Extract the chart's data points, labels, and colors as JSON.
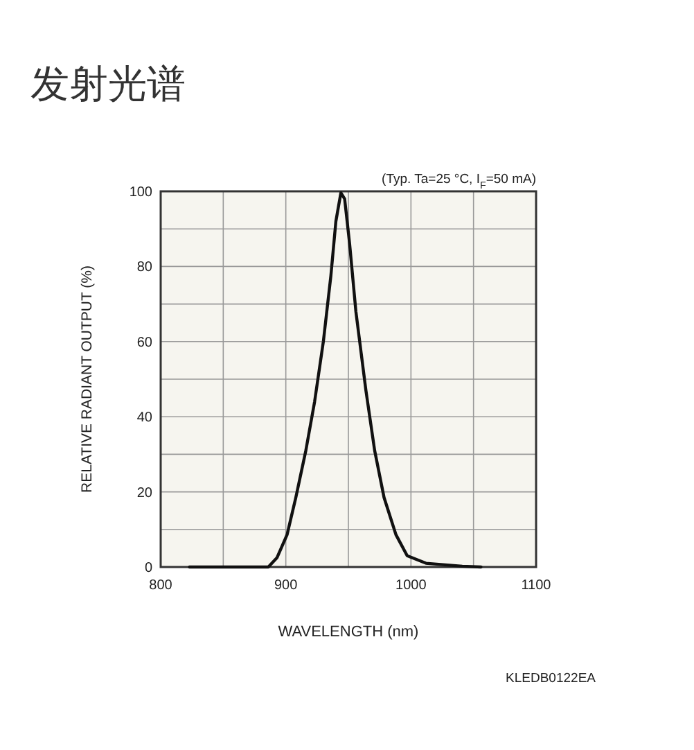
{
  "chart_data": {
    "type": "line",
    "title": "发射光谱",
    "xlabel": "WAVELENGTH (nm)",
    "ylabel": "RELATIVE RADIANT OUTPUT (%)",
    "annotations": [
      "(Typ. Ta=25 °C, I$_{F}$=50 mA)",
      "KLEDB0122EA"
    ],
    "xlim": [
      800,
      1100
    ],
    "ylim": [
      0,
      100
    ],
    "xticks": [
      800,
      {
        "value": 850,
        "label": null
      },
      900,
      {
        "value": 950,
        "label": null
      },
      1000,
      {
        "value": 1050,
        "label": null
      },
      1100
    ],
    "yticks": [
      0,
      {
        "value": 10,
        "label": null
      },
      20,
      {
        "value": 30,
        "label": null
      },
      40,
      {
        "value": 50,
        "label": null
      },
      60,
      {
        "value": 70,
        "label": null
      },
      80,
      {
        "value": 90,
        "label": null
      },
      100
    ],
    "grid": true,
    "marker": "none",
    "line_style": "solid",
    "series": [
      {
        "color": "#111111",
        "x": [
          823,
          886,
          893,
          901,
          908,
          916,
          923,
          930,
          936,
          940,
          944,
          947,
          951,
          956,
          964,
          971,
          978.5,
          988,
          997,
          1012,
          1041,
          1056
        ],
        "values": [
          0,
          0,
          2.5,
          8.6,
          18.5,
          31,
          44,
          60,
          77.5,
          92,
          99.6,
          98,
          86,
          68,
          47,
          31,
          18.5,
          8.6,
          3,
          1,
          0.2,
          0
        ]
      }
    ]
  }
}
